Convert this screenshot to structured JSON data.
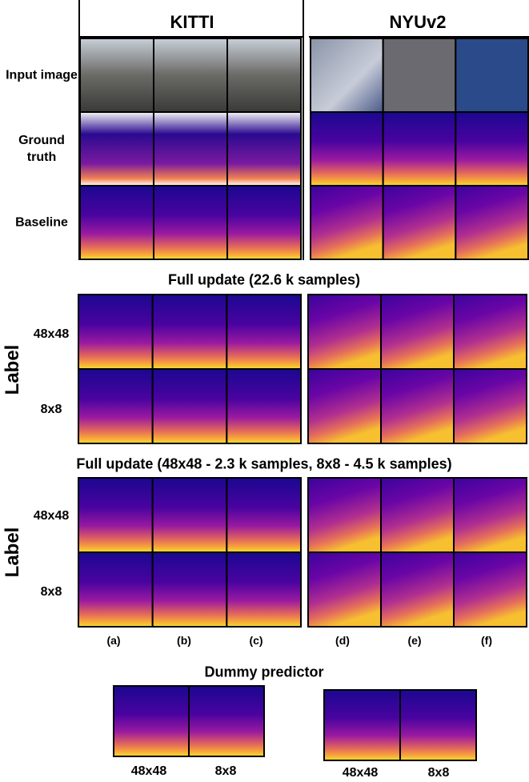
{
  "top_grid": {
    "headers": [
      "KITTI",
      "NYUv2"
    ],
    "row_labels": [
      "Input image",
      "Ground truth",
      "Baseline"
    ]
  },
  "blocks": [
    {
      "title": "Full update (22.6 k samples)",
      "side_label": "Label",
      "row_labels": [
        "48x48",
        "8x8"
      ]
    },
    {
      "title": "Full update (48x48 - 2.3 k samples, 8x8 - 4.5 k samples)",
      "side_label": "Label",
      "row_labels": [
        "48x48",
        "8x8"
      ]
    }
  ],
  "column_letters": [
    "(a)",
    "(b)",
    "(c)",
    "(d)",
    "(e)",
    "(f)"
  ],
  "dummy": {
    "title": "Dummy predictor",
    "pairs": [
      [
        "48x48",
        "8x8"
      ],
      [
        "48x48",
        "8x8"
      ]
    ]
  }
}
